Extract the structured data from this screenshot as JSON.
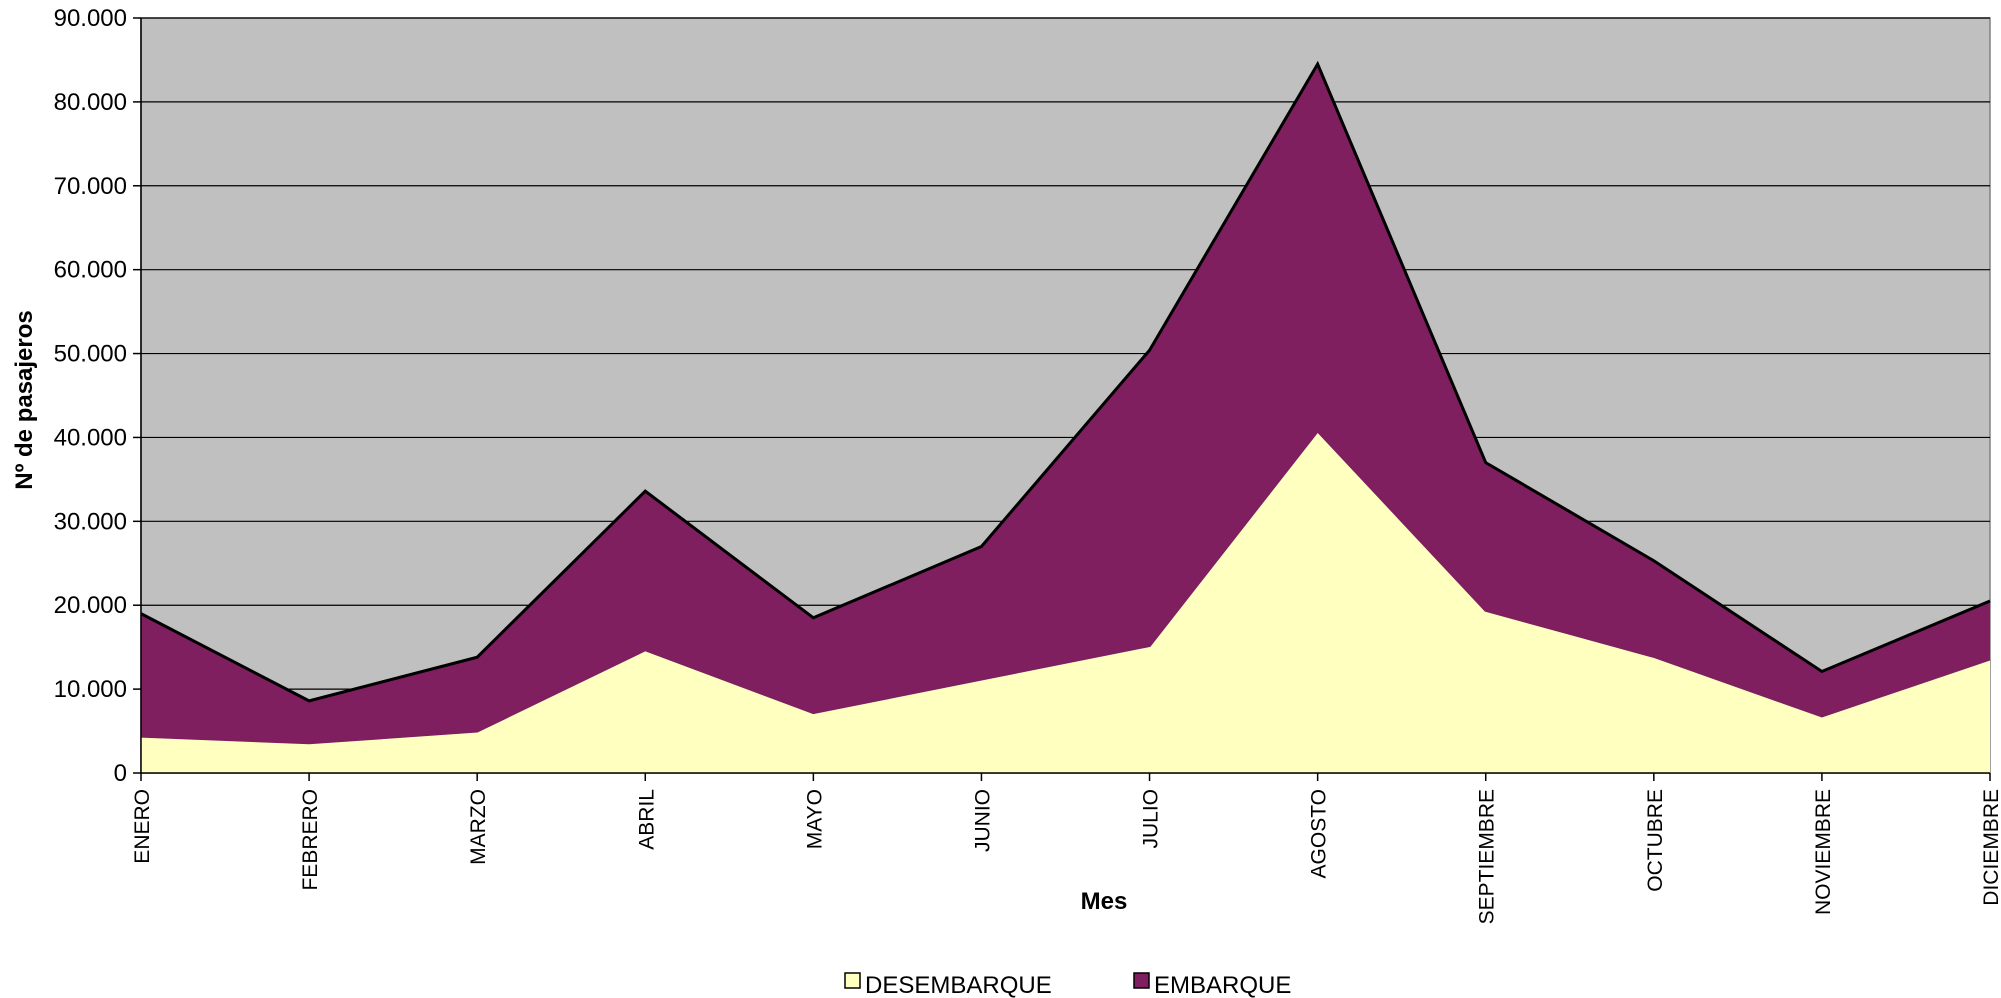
{
  "chart_data": {
    "type": "area",
    "stacked": true,
    "title": "",
    "xlabel": "Mes",
    "ylabel": "Nº de pasajeros",
    "categories": [
      "ENERO",
      "FEBRERO",
      "MARZO",
      "ABRIL",
      "MAYO",
      "JUNIO",
      "JULIO",
      "AGOSTO",
      "SEPTIEMBRE",
      "OCTUBRE",
      "NOVIEMBRE",
      "DICIEMBRE"
    ],
    "series": [
      {
        "name": "DESEMBARQUE",
        "color": "#FFFFC0",
        "values": [
          4400,
          3600,
          5000,
          14700,
          7200,
          11200,
          15200,
          40800,
          19400,
          13900,
          6800,
          13600
        ]
      },
      {
        "name": "EMBARQUE",
        "color": "#7F1F5F",
        "values": [
          14600,
          5000,
          8800,
          18900,
          11300,
          15800,
          35200,
          43700,
          17600,
          11400,
          5300,
          6900
        ]
      }
    ],
    "ylim": [
      0,
      90000
    ],
    "yticks": [
      0,
      10000,
      20000,
      30000,
      40000,
      50000,
      60000,
      70000,
      80000,
      90000
    ],
    "ytick_labels": [
      "0",
      "10.000",
      "20.000",
      "30.000",
      "40.000",
      "50.000",
      "60.000",
      "70.000",
      "80.000",
      "90.000"
    ],
    "plot_background": "#C0C0C0",
    "grid": true,
    "legend_position": "bottom"
  }
}
